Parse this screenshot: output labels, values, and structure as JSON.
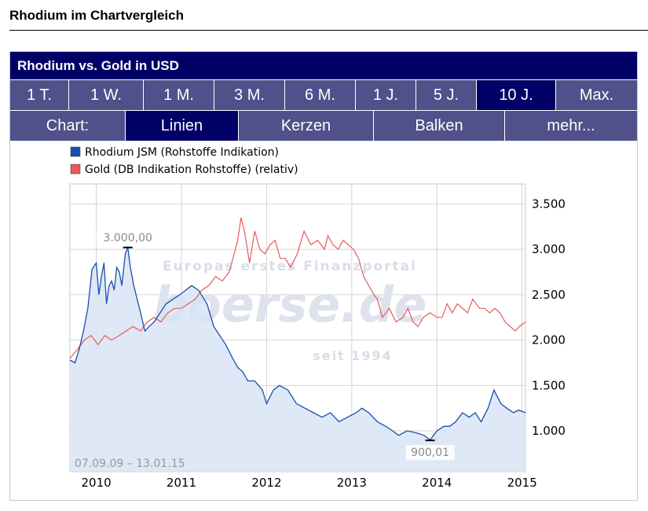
{
  "page": {
    "section_title": "Rhodium im Chartvergleich"
  },
  "widget": {
    "title": "Rhodium vs. Gold in USD",
    "ranges": [
      {
        "label": "1 T.",
        "active": false
      },
      {
        "label": "1 W.",
        "active": false
      },
      {
        "label": "1 M.",
        "active": false
      },
      {
        "label": "3 M.",
        "active": false
      },
      {
        "label": "6 M.",
        "active": false
      },
      {
        "label": "1 J.",
        "active": false
      },
      {
        "label": "5 J.",
        "active": false
      },
      {
        "label": "10 J.",
        "active": true
      },
      {
        "label": "Max.",
        "active": false
      }
    ],
    "chart_types": {
      "label": "Chart:",
      "options": [
        {
          "label": "Linien",
          "active": true
        },
        {
          "label": "Kerzen",
          "active": false
        },
        {
          "label": "Balken",
          "active": false
        },
        {
          "label": "mehr...",
          "active": false
        }
      ]
    }
  },
  "chart_data": {
    "type": "line",
    "title": "",
    "xlabel": "",
    "ylabel": "",
    "date_range": "07.09.09 – 13.01.15",
    "watermark": {
      "line1": "Europas erstes Finanzportal",
      "logo": "boerse.de",
      "line2": "seit 1994"
    },
    "x_ticks": [
      "2010",
      "2011",
      "2012",
      "2013",
      "2014",
      "2015"
    ],
    "y_ticks": [
      "1.000",
      "1.500",
      "2.000",
      "2.500",
      "3.000",
      "3.500"
    ],
    "ylim": [
      550,
      3720
    ],
    "xlim": [
      2009.69,
      2015.04
    ],
    "legend_position": "top-left",
    "grid": true,
    "colors": {
      "rhodium": "#1a4fae",
      "gold": "#e85a5a",
      "area_fill": "#d8e4f5"
    },
    "annotations": [
      {
        "text": "3.000,00",
        "x": 2010.37,
        "y": 3020,
        "type": "high"
      },
      {
        "text": "900,01",
        "x": 2013.92,
        "y": 895,
        "type": "low"
      }
    ],
    "series": [
      {
        "name": "Rhodium JSM (Rohstoffe Indikation)",
        "color": "#1a4fae",
        "x": [
          2009.69,
          2009.75,
          2009.8,
          2009.85,
          2009.9,
          2009.95,
          2010.0,
          2010.03,
          2010.06,
          2010.09,
          2010.12,
          2010.15,
          2010.18,
          2010.21,
          2010.24,
          2010.27,
          2010.3,
          2010.34,
          2010.37,
          2010.4,
          2010.44,
          2010.48,
          2010.52,
          2010.57,
          2010.62,
          2010.68,
          2010.75,
          2010.82,
          2010.9,
          2010.98,
          2011.05,
          2011.12,
          2011.2,
          2011.3,
          2011.38,
          2011.45,
          2011.52,
          2011.6,
          2011.66,
          2011.72,
          2011.78,
          2011.86,
          2011.95,
          2012.0,
          2012.08,
          2012.15,
          2012.25,
          2012.35,
          2012.45,
          2012.55,
          2012.65,
          2012.75,
          2012.85,
          2012.95,
          2013.05,
          2013.12,
          2013.2,
          2013.3,
          2013.4,
          2013.48,
          2013.55,
          2013.65,
          2013.75,
          2013.85,
          2013.92,
          2014.0,
          2014.08,
          2014.15,
          2014.22,
          2014.3,
          2014.38,
          2014.45,
          2014.52,
          2014.6,
          2014.67,
          2014.75,
          2014.82,
          2014.9,
          2014.96,
          2015.04
        ],
        "y": [
          1780,
          1750,
          1900,
          2100,
          2350,
          2780,
          2850,
          2500,
          2700,
          2850,
          2400,
          2600,
          2650,
          2550,
          2800,
          2750,
          2600,
          2950,
          3020,
          2800,
          2600,
          2450,
          2300,
          2100,
          2150,
          2200,
          2300,
          2400,
          2450,
          2500,
          2550,
          2600,
          2550,
          2400,
          2150,
          2050,
          1950,
          1800,
          1700,
          1650,
          1550,
          1550,
          1450,
          1300,
          1450,
          1500,
          1450,
          1300,
          1250,
          1200,
          1150,
          1200,
          1100,
          1150,
          1200,
          1250,
          1200,
          1100,
          1050,
          1000,
          950,
          1000,
          980,
          950,
          900,
          1000,
          1050,
          1050,
          1100,
          1200,
          1150,
          1200,
          1100,
          1250,
          1450,
          1300,
          1250,
          1200,
          1230,
          1200
        ]
      },
      {
        "name": "Gold (DB Indikation Rohstoffe) (relativ)",
        "color": "#e85a5a",
        "x": [
          2009.69,
          2009.78,
          2009.86,
          2009.94,
          2010.02,
          2010.1,
          2010.18,
          2010.27,
          2010.35,
          2010.43,
          2010.52,
          2010.6,
          2010.68,
          2010.76,
          2010.84,
          2010.92,
          2011.0,
          2011.08,
          2011.16,
          2011.24,
          2011.32,
          2011.4,
          2011.48,
          2011.56,
          2011.62,
          2011.66,
          2011.7,
          2011.74,
          2011.8,
          2011.86,
          2011.92,
          2011.98,
          2012.04,
          2012.1,
          2012.16,
          2012.22,
          2012.28,
          2012.36,
          2012.44,
          2012.52,
          2012.6,
          2012.68,
          2012.72,
          2012.78,
          2012.84,
          2012.9,
          2012.96,
          2013.02,
          2013.08,
          2013.14,
          2013.2,
          2013.26,
          2013.3,
          2013.36,
          2013.44,
          2013.52,
          2013.6,
          2013.66,
          2013.72,
          2013.78,
          2013.84,
          2013.92,
          2014.0,
          2014.06,
          2014.12,
          2014.18,
          2014.24,
          2014.3,
          2014.36,
          2014.42,
          2014.5,
          2014.56,
          2014.62,
          2014.68,
          2014.74,
          2014.8,
          2014.86,
          2014.92,
          2014.97,
          2015.04
        ],
        "y": [
          1800,
          1900,
          2000,
          2050,
          1950,
          2050,
          2000,
          2050,
          2100,
          2150,
          2100,
          2200,
          2250,
          2200,
          2300,
          2350,
          2350,
          2400,
          2450,
          2550,
          2600,
          2700,
          2650,
          2750,
          2950,
          3100,
          3350,
          3200,
          2850,
          3200,
          3000,
          2950,
          3050,
          3100,
          2900,
          2900,
          2800,
          2950,
          3200,
          3050,
          3100,
          3000,
          3150,
          3050,
          3000,
          3100,
          3050,
          3000,
          2900,
          2700,
          2600,
          2500,
          2450,
          2250,
          2350,
          2200,
          2250,
          2350,
          2200,
          2150,
          2250,
          2300,
          2250,
          2250,
          2400,
          2300,
          2400,
          2350,
          2300,
          2450,
          2350,
          2350,
          2300,
          2350,
          2300,
          2200,
          2150,
          2100,
          2150,
          2200
        ]
      }
    ]
  }
}
